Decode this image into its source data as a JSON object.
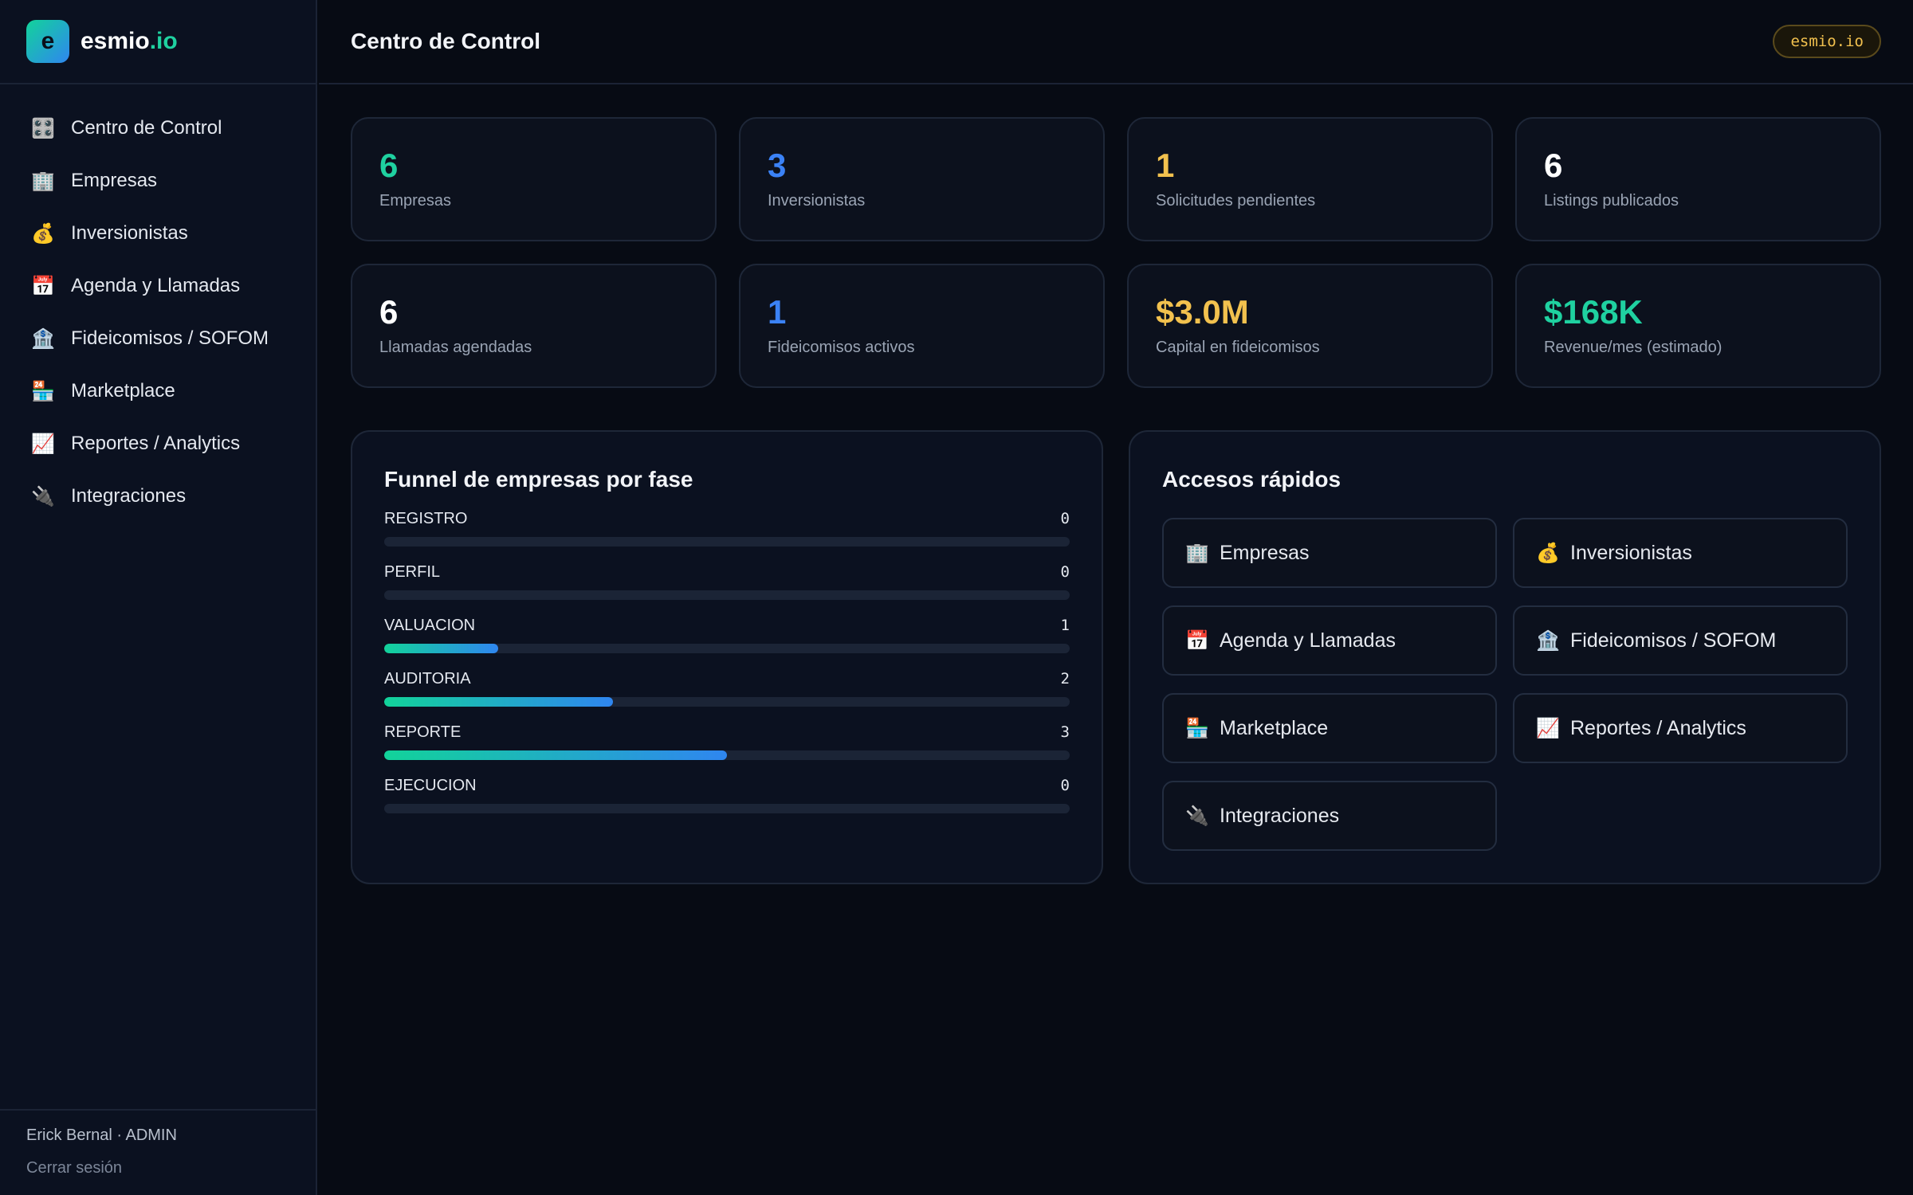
{
  "brand": {
    "logo_letter": "e",
    "name": "esmio",
    "tld": ".io"
  },
  "sidebar": {
    "items": [
      {
        "label": "Centro de Control",
        "icon": "🎛️"
      },
      {
        "label": "Empresas",
        "icon": "🏢"
      },
      {
        "label": "Inversionistas",
        "icon": "💰"
      },
      {
        "label": "Agenda y Llamadas",
        "icon": "📅"
      },
      {
        "label": "Fideicomisos / SOFOM",
        "icon": "🏦"
      },
      {
        "label": "Marketplace",
        "icon": "🏪"
      },
      {
        "label": "Reportes / Analytics",
        "icon": "📈"
      },
      {
        "label": "Integraciones",
        "icon": "🔌"
      }
    ],
    "user": "Erick Bernal · ADMIN",
    "logout": "Cerrar sesión"
  },
  "header": {
    "title": "Centro de Control",
    "env_pill": "esmio.io"
  },
  "stats": [
    {
      "value": "6",
      "label": "Empresas",
      "color": "#1fd1a0"
    },
    {
      "value": "3",
      "label": "Inversionistas",
      "color": "#3b82f6"
    },
    {
      "value": "1",
      "label": "Solicitudes pendientes",
      "color": "#f2c14e"
    },
    {
      "value": "6",
      "label": "Listings publicados",
      "color": "#ffffff"
    },
    {
      "value": "6",
      "label": "Llamadas agendadas",
      "color": "#ffffff"
    },
    {
      "value": "1",
      "label": "Fideicomisos activos",
      "color": "#3b82f6"
    },
    {
      "value": "$3.0M",
      "label": "Capital en fideicomisos",
      "color": "#f2c14e"
    },
    {
      "value": "$168K",
      "label": "Revenue/mes (estimado)",
      "color": "#1fd1a0"
    }
  ],
  "funnel": {
    "title": "Funnel de empresas por fase",
    "max": 6,
    "rows": [
      {
        "label": "REGISTRO",
        "count": "0",
        "value": 0
      },
      {
        "label": "PERFIL",
        "count": "0",
        "value": 0
      },
      {
        "label": "VALUACION",
        "count": "1",
        "value": 1
      },
      {
        "label": "AUDITORIA",
        "count": "2",
        "value": 2
      },
      {
        "label": "REPORTE",
        "count": "3",
        "value": 3
      },
      {
        "label": "EJECUCION",
        "count": "0",
        "value": 0
      }
    ]
  },
  "quick_access": {
    "title": "Accesos rápidos",
    "items": [
      {
        "label": "Empresas",
        "icon": "🏢"
      },
      {
        "label": "Inversionistas",
        "icon": "💰"
      },
      {
        "label": "Agenda y Llamadas",
        "icon": "📅"
      },
      {
        "label": "Fideicomisos / SOFOM",
        "icon": "🏦"
      },
      {
        "label": "Marketplace",
        "icon": "🏪"
      },
      {
        "label": "Reportes / Analytics",
        "icon": "📈"
      },
      {
        "label": "Integraciones",
        "icon": "🔌"
      }
    ]
  }
}
